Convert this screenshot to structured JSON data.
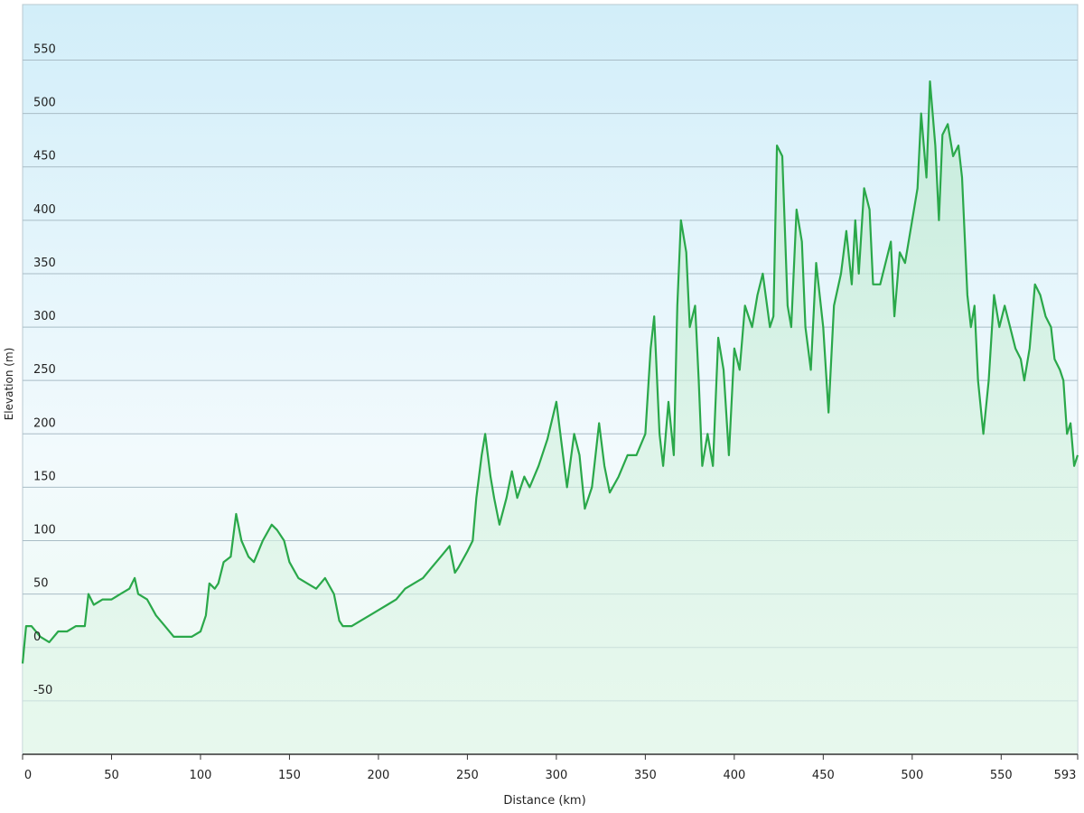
{
  "chart_data": {
    "type": "area",
    "xlabel": "Distance  (km)",
    "ylabel": "Elevation (m)",
    "color": "#2aa84a",
    "grid": true,
    "xlim": [
      0,
      593
    ],
    "ylim": [
      -100,
      602
    ],
    "xticks": [
      0,
      50,
      100,
      150,
      200,
      250,
      300,
      350,
      400,
      450,
      500,
      550,
      593
    ],
    "yticks": [
      -50,
      0,
      50,
      100,
      150,
      200,
      250,
      300,
      350,
      400,
      450,
      500,
      550
    ],
    "x": [
      0,
      2,
      5,
      10,
      15,
      20,
      25,
      30,
      35,
      37,
      40,
      45,
      50,
      55,
      60,
      63,
      65,
      70,
      75,
      80,
      85,
      90,
      95,
      100,
      103,
      105,
      108,
      110,
      113,
      117,
      120,
      123,
      127,
      130,
      135,
      140,
      143,
      147,
      150,
      155,
      160,
      165,
      170,
      175,
      178,
      180,
      185,
      190,
      195,
      200,
      205,
      210,
      215,
      220,
      225,
      230,
      235,
      240,
      243,
      245,
      250,
      253,
      255,
      258,
      260,
      263,
      265,
      268,
      272,
      275,
      278,
      282,
      285,
      290,
      295,
      300,
      303,
      306,
      310,
      313,
      316,
      320,
      324,
      327,
      330,
      335,
      340,
      345,
      350,
      353,
      355,
      358,
      360,
      363,
      366,
      368,
      370,
      373,
      375,
      378,
      380,
      382,
      385,
      388,
      391,
      394,
      397,
      400,
      403,
      406,
      410,
      413,
      416,
      420,
      422,
      424,
      427,
      430,
      432,
      435,
      438,
      440,
      443,
      446,
      450,
      453,
      456,
      460,
      463,
      466,
      468,
      470,
      473,
      476,
      478,
      482,
      485,
      488,
      490,
      493,
      496,
      500,
      503,
      505,
      508,
      510,
      513,
      515,
      517,
      520,
      523,
      526,
      528,
      531,
      533,
      535,
      537,
      540,
      543,
      546,
      549,
      552,
      555,
      558,
      561,
      563,
      566,
      569,
      572,
      575,
      578,
      580,
      583,
      585,
      587,
      589,
      591,
      593
    ],
    "series": [
      {
        "name": "Elevation",
        "values": [
          -15,
          20,
          20,
          10,
          5,
          15,
          15,
          20,
          20,
          50,
          40,
          45,
          45,
          50,
          55,
          65,
          50,
          45,
          30,
          20,
          10,
          10,
          10,
          15,
          30,
          60,
          55,
          60,
          80,
          85,
          125,
          100,
          85,
          80,
          100,
          115,
          110,
          100,
          80,
          65,
          60,
          55,
          65,
          50,
          25,
          20,
          20,
          25,
          30,
          35,
          40,
          45,
          55,
          60,
          65,
          75,
          85,
          95,
          70,
          75,
          90,
          100,
          140,
          180,
          200,
          160,
          140,
          115,
          140,
          165,
          140,
          160,
          150,
          170,
          195,
          230,
          190,
          150,
          200,
          180,
          130,
          150,
          210,
          170,
          145,
          160,
          180,
          180,
          200,
          280,
          310,
          200,
          170,
          230,
          180,
          320,
          400,
          370,
          300,
          320,
          250,
          170,
          200,
          170,
          290,
          260,
          180,
          280,
          260,
          320,
          300,
          330,
          350,
          300,
          310,
          470,
          460,
          320,
          300,
          410,
          380,
          300,
          260,
          360,
          300,
          220,
          320,
          350,
          390,
          340,
          400,
          350,
          430,
          410,
          340,
          340,
          360,
          380,
          310,
          370,
          360,
          400,
          430,
          500,
          440,
          530,
          470,
          400,
          480,
          490,
          460,
          470,
          440,
          330,
          300,
          320,
          250,
          200,
          250,
          330,
          300,
          320,
          300,
          280,
          270,
          250,
          280,
          340,
          330,
          310,
          300,
          270,
          260,
          250,
          200,
          210,
          170,
          180
        ]
      }
    ]
  }
}
